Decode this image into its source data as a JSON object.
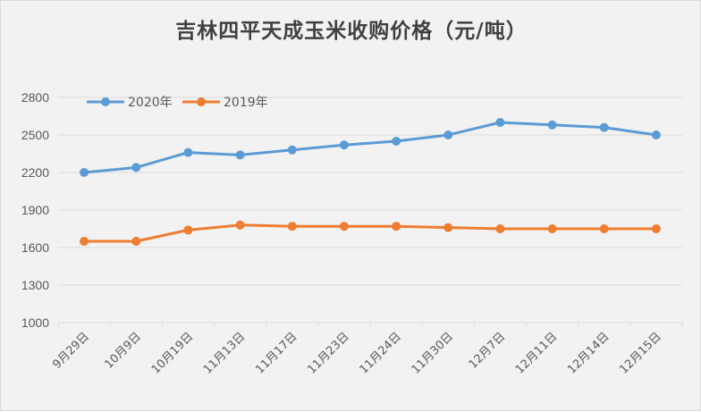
{
  "chart_data": {
    "type": "line",
    "title": "吉林四平天成玉米收购价格（元/吨）",
    "categories": [
      "9月29日",
      "10月9日",
      "10月19日",
      "11月13日",
      "11月17日",
      "11月23日",
      "11月24日",
      "11月30日",
      "12月7日",
      "12月11日",
      "12月14日",
      "12月15日"
    ],
    "series": [
      {
        "name": "2020年",
        "color": "#5b9bd5",
        "values": [
          2200,
          2240,
          2360,
          2340,
          2380,
          2420,
          2450,
          2500,
          2600,
          2580,
          2560,
          2500
        ]
      },
      {
        "name": "2019年",
        "color": "#ed7d31",
        "values": [
          1650,
          1650,
          1740,
          1780,
          1770,
          1770,
          1770,
          1760,
          1750,
          1750,
          1750,
          1750
        ]
      }
    ],
    "yticks": [
      1000,
      1300,
      1600,
      1900,
      2200,
      2500,
      2800
    ],
    "ylim": [
      1000,
      2800
    ],
    "grid": true,
    "legend_position": "top-left"
  }
}
